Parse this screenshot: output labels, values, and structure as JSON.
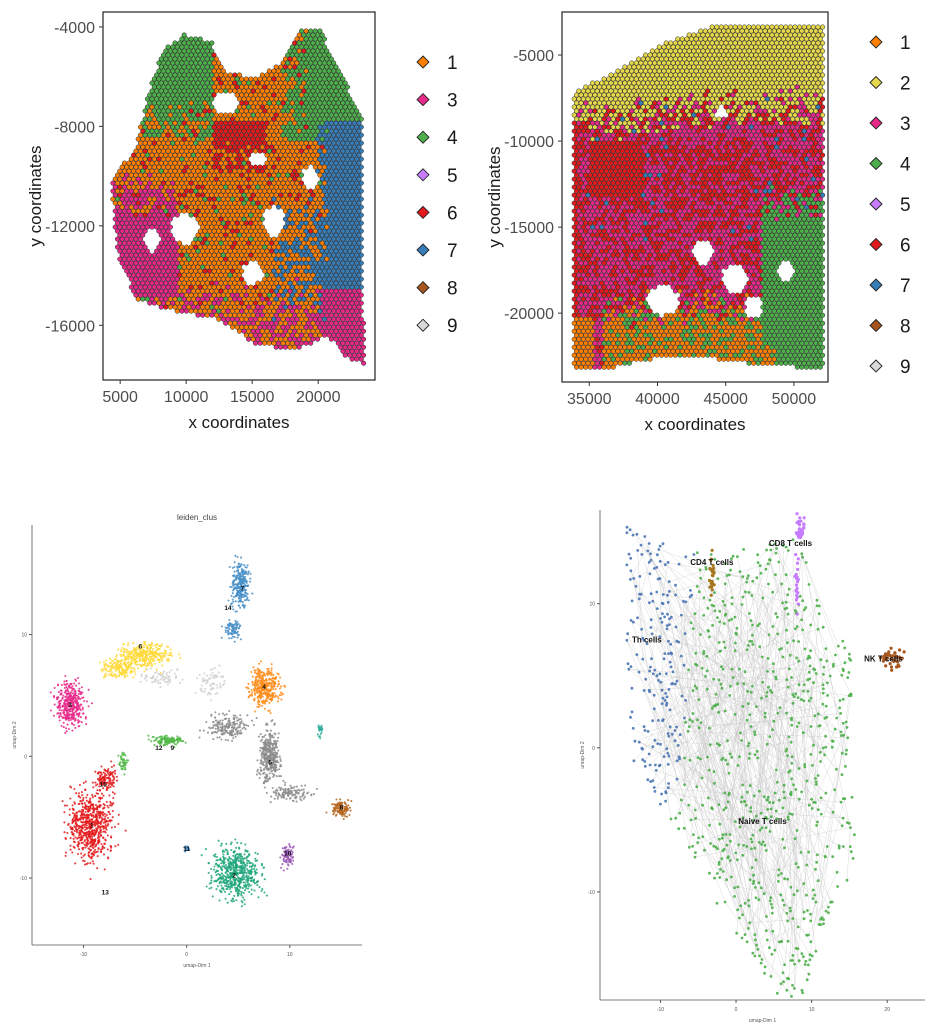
{
  "chart_data": [
    {
      "type": "scatter",
      "xlabel": "x coordinates",
      "ylabel": "y coordinates",
      "xticks": [
        5000,
        10000,
        15000,
        20000
      ],
      "yticks": [
        -4000,
        -8000,
        -12000,
        -16000
      ],
      "xlim": [
        3700,
        24300
      ],
      "ylim": [
        -18200,
        -3400
      ],
      "legend_position": "right",
      "legend": [
        {
          "label": "1",
          "color": "#FF7F00"
        },
        {
          "label": "3",
          "color": "#E7298A"
        },
        {
          "label": "4",
          "color": "#4DAF4A"
        },
        {
          "label": "5",
          "color": "#C77CFF"
        },
        {
          "label": "6",
          "color": "#E41A1C"
        },
        {
          "label": "7",
          "color": "#377EB8"
        },
        {
          "label": "8",
          "color": "#A6561C"
        },
        {
          "label": "9",
          "color": "#D9D9D9"
        }
      ]
    },
    {
      "type": "scatter",
      "xlabel": "x coordinates",
      "ylabel": "y coordinates",
      "xticks": [
        35000,
        40000,
        45000,
        50000
      ],
      "yticks": [
        -5000,
        -10000,
        -15000,
        -20000
      ],
      "xlim": [
        33000,
        52500
      ],
      "ylim": [
        -24000,
        -2500
      ],
      "legend_position": "right",
      "legend": [
        {
          "label": "1",
          "color": "#FF7F00"
        },
        {
          "label": "2",
          "color": "#E6D84B"
        },
        {
          "label": "3",
          "color": "#E7298A"
        },
        {
          "label": "4",
          "color": "#4DAF4A"
        },
        {
          "label": "5",
          "color": "#C77CFF"
        },
        {
          "label": "6",
          "color": "#E41A1C"
        },
        {
          "label": "7",
          "color": "#377EB8"
        },
        {
          "label": "8",
          "color": "#A6561C"
        },
        {
          "label": "9",
          "color": "#D9D9D9"
        }
      ]
    },
    {
      "type": "scatter",
      "title": "leiden_clus",
      "xlabel": "umap-Dim 1",
      "ylabel": "umap-Dim 2",
      "xticks": [
        -10,
        0,
        10
      ],
      "yticks": [
        10,
        0,
        -10
      ],
      "xlim": [
        -15,
        17
      ],
      "ylim": [
        -15.5,
        19
      ],
      "clusters": [
        {
          "label": "7",
          "color": "#4A90C8",
          "x": 5.4,
          "y": 13.8
        },
        {
          "label": "14",
          "color": "#4A90C8",
          "x": 4.0,
          "y": 12.2
        },
        {
          "label": "6",
          "color": "#FFD93B",
          "x": -4.5,
          "y": 9.0
        },
        {
          "label": "3",
          "color": "#E7298A",
          "x": -11.3,
          "y": 4.2
        },
        {
          "label": "4",
          "color": "#FF8C1A",
          "x": 7.5,
          "y": 5.7
        },
        {
          "label": "12",
          "color": "#52B847",
          "x": -2.7,
          "y": 0.7
        },
        {
          "label": "9",
          "color": "#52B847",
          "x": -1.4,
          "y": 0.7
        },
        {
          "label": "5",
          "color": "#8C8C8C",
          "x": 8.1,
          "y": -0.5
        },
        {
          "label": "8",
          "color": "#B5651D",
          "x": 15.0,
          "y": -4.2
        },
        {
          "label": "15",
          "color": "#E41A1C",
          "x": -8.1,
          "y": -2.3
        },
        {
          "label": "1",
          "color": "#E41A1C",
          "x": -9.2,
          "y": -5.7
        },
        {
          "label": "13",
          "color": "#E41A1C",
          "x": -7.9,
          "y": -11.2
        },
        {
          "label": "11",
          "color": "#4A90C8",
          "x": 0.0,
          "y": -7.6
        },
        {
          "label": "10",
          "color": "#9B59B6",
          "x": 9.8,
          "y": -8.0
        },
        {
          "label": "2",
          "color": "#1FA67A",
          "x": 4.6,
          "y": -9.8
        }
      ]
    },
    {
      "type": "scatter",
      "xlabel": "umap-Dim 1",
      "ylabel": "umap-Dim 2",
      "xticks": [
        -10,
        0,
        10,
        20
      ],
      "yticks": [
        10,
        0,
        -10
      ],
      "xlim": [
        -18,
        25
      ],
      "ylim": [
        -17.5,
        16.5
      ],
      "groups": [
        {
          "label": "CD4 T cells",
          "color": "#A6761D",
          "x": -3.2,
          "y": 12.7
        },
        {
          "label": "CD8 T cells",
          "color": "#C77CFF",
          "x": 7.2,
          "y": 14.0
        },
        {
          "label": "Th cells",
          "color": "#4A74B4",
          "x": -11.8,
          "y": 7.3
        },
        {
          "label": "NK T cells",
          "color": "#A6561C",
          "x": 19.5,
          "y": 6.0
        },
        {
          "label": "Naive T cells",
          "color": "#4DAF4A",
          "x": 3.5,
          "y": -5.3
        }
      ]
    }
  ]
}
